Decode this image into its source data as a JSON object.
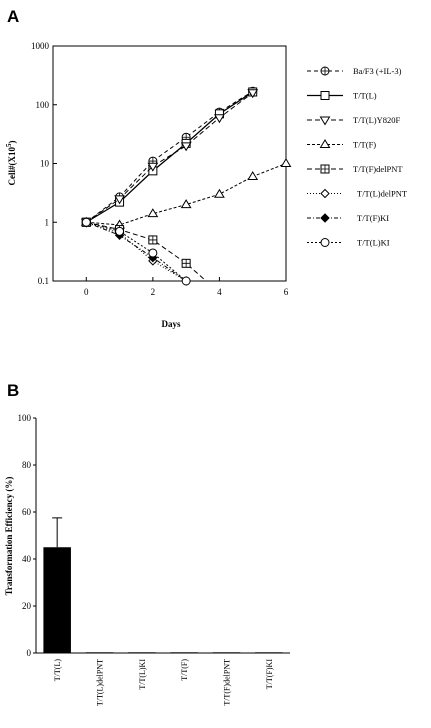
{
  "panels": {
    "a_label": "A",
    "b_label": "B"
  },
  "chart_data": [
    {
      "type": "line",
      "panel": "A",
      "xlabel": "Days",
      "ylabel": "Cell#(X10⁵)",
      "ylabel_main": "Cell#(X10",
      "ylabel_exp": "5",
      "ylabel_close": ")",
      "y_scale": "log",
      "xlim": [
        -1,
        6
      ],
      "ylim": [
        0.1,
        1000
      ],
      "x_ticks": [
        0,
        2,
        4,
        6
      ],
      "x_tick_labels": [
        "0",
        "2",
        "4",
        "6"
      ],
      "y_ticks": [
        0.1,
        1,
        10,
        100,
        1000
      ],
      "y_tick_labels": [
        "0.1",
        "1",
        "10",
        "100",
        "1000"
      ],
      "grid": false,
      "legend_position": "right",
      "series": [
        {
          "name": "Ba/F3 (+IL-3)",
          "marker": "circle-plus",
          "dash": "4,3",
          "points": [
            [
              0,
              1
            ],
            [
              1,
              2.7
            ],
            [
              2,
              11
            ],
            [
              3,
              28
            ],
            [
              4,
              75
            ],
            [
              5,
              170
            ]
          ]
        },
        {
          "name": "T/T(L)",
          "marker": "square",
          "dash": "",
          "points": [
            [
              0,
              1
            ],
            [
              1,
              2.2
            ],
            [
              2,
              7.5
            ],
            [
              3,
              22
            ],
            [
              4,
              70
            ],
            [
              5,
              165
            ]
          ]
        },
        {
          "name": "T/T(L)Y820F",
          "marker": "triangle-down",
          "dash": "5,3",
          "points": [
            [
              0,
              1
            ],
            [
              1,
              2.5
            ],
            [
              2,
              9
            ],
            [
              3,
              20
            ],
            [
              4,
              60
            ],
            [
              5,
              160
            ]
          ]
        },
        {
          "name": "T/T(F)",
          "marker": "triangle-up",
          "dash": "3,2",
          "points": [
            [
              0,
              1
            ],
            [
              1,
              0.9
            ],
            [
              2,
              1.4
            ],
            [
              3,
              2
            ],
            [
              4,
              3
            ],
            [
              5,
              6
            ],
            [
              6,
              10
            ]
          ]
        },
        {
          "name": "T/T(F)delPNT",
          "marker": "square-plus",
          "dash": "5,3",
          "points": [
            [
              0,
              1
            ],
            [
              1,
              0.75
            ],
            [
              2,
              0.5
            ],
            [
              3,
              0.2
            ],
            [
              3.6,
              0.1
            ]
          ]
        },
        {
          "name": "T/T(L)delPNT",
          "marker": "diamond",
          "dash": "1,2",
          "points": [
            [
              0,
              1
            ],
            [
              1,
              0.65
            ],
            [
              2,
              0.22
            ],
            [
              3,
              0.1
            ]
          ]
        },
        {
          "name": "T/T(F)KI",
          "marker": "diamond-filled",
          "dash": "4,2,1,2",
          "points": [
            [
              0,
              1
            ],
            [
              1,
              0.6
            ],
            [
              2,
              0.25
            ],
            [
              3,
              0.1
            ]
          ]
        },
        {
          "name": "T/T(L)KI",
          "marker": "circle",
          "dash": "2,2",
          "points": [
            [
              0,
              1
            ],
            [
              1,
              0.7
            ],
            [
              2,
              0.3
            ],
            [
              3,
              0.1
            ]
          ]
        }
      ]
    },
    {
      "type": "bar",
      "panel": "B",
      "ylabel": "Transformation Efficiency (%)",
      "ylim": [
        0,
        100
      ],
      "y_ticks": [
        0,
        20,
        40,
        60,
        80,
        100
      ],
      "y_tick_labels": [
        "0",
        "20",
        "40",
        "60",
        "80",
        "100"
      ],
      "grid": false,
      "categories": [
        "T/T(L)",
        "T/T(L)delPNT",
        "T/T(L)KI",
        "T/T(F)",
        "T/T(F)delPNT",
        "T/T(F)KI"
      ],
      "values": [
        45,
        0.3,
        0.3,
        0.3,
        0.3,
        0.3
      ],
      "errors": [
        12.5,
        0,
        0,
        0,
        0,
        0
      ],
      "bar_color": "#000000"
    }
  ]
}
